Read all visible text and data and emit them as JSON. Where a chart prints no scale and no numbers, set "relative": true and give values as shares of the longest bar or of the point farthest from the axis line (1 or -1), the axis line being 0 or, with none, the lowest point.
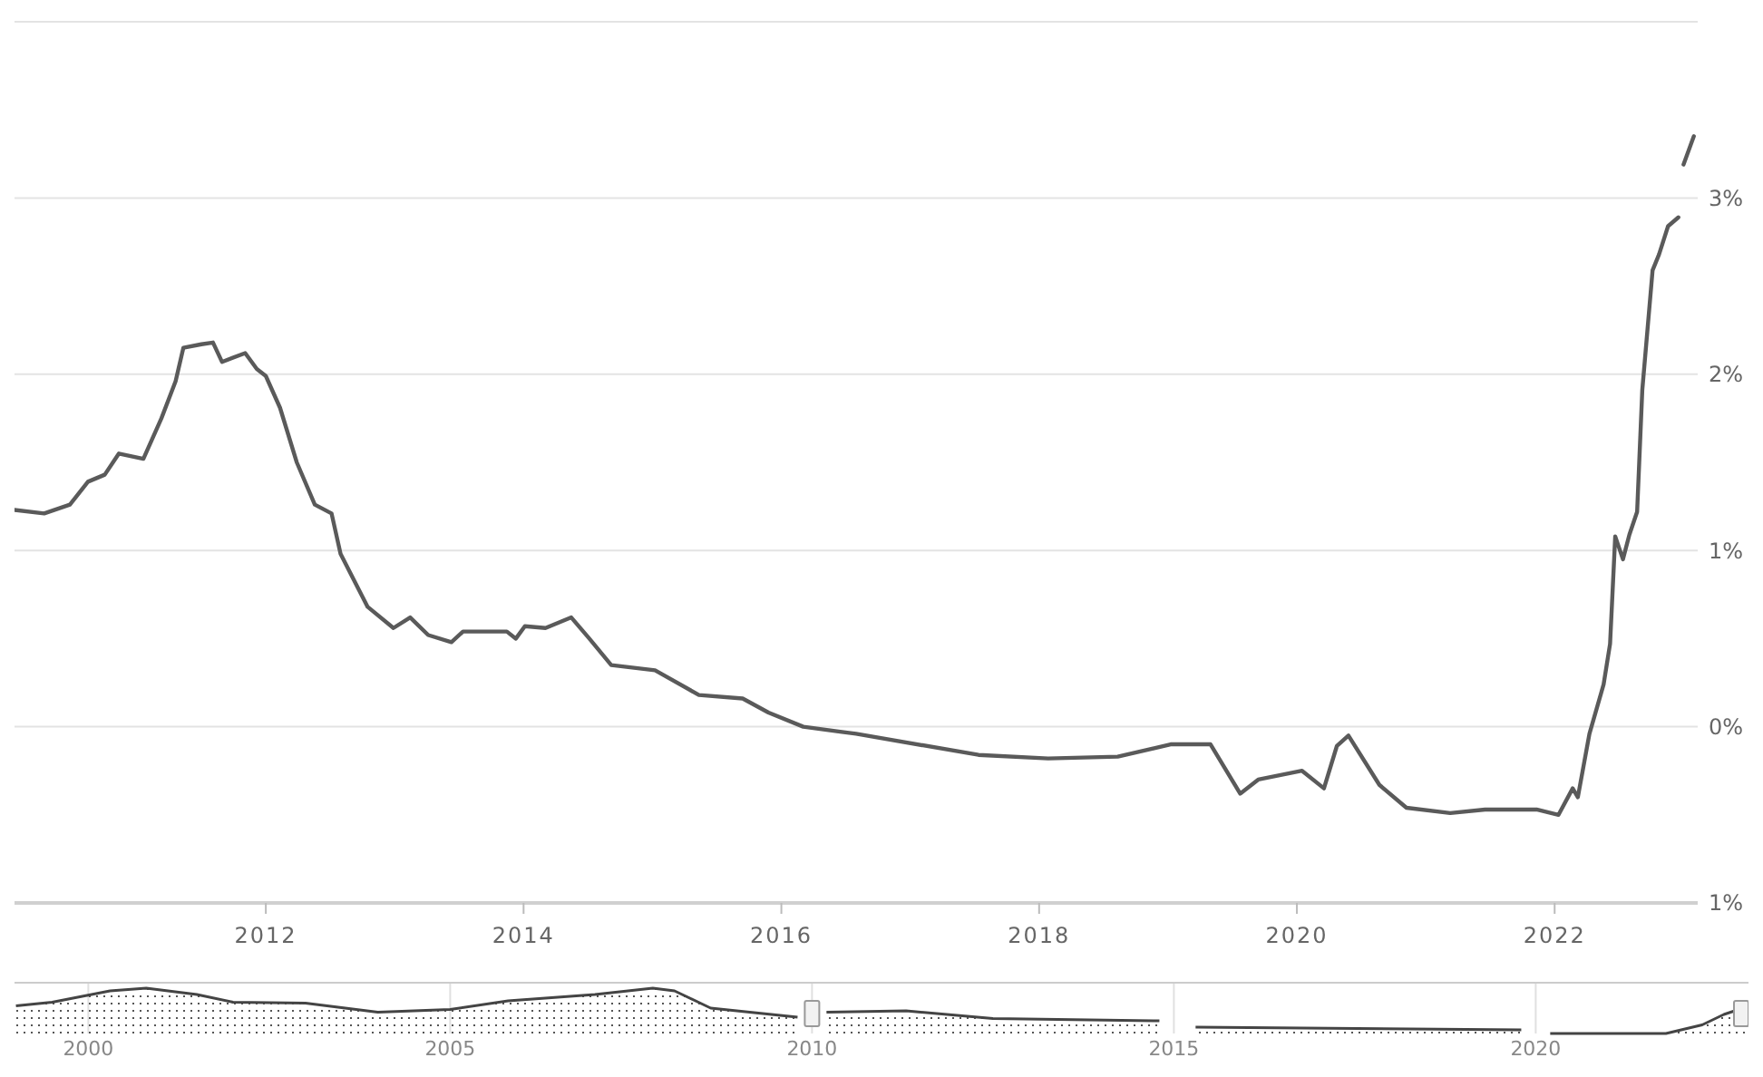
{
  "chart_data": [
    {
      "type": "line",
      "xlim": [
        2010.05,
        2023.11
      ],
      "ylim": [
        -1,
        4
      ],
      "xticks": [
        2012,
        2014,
        2016,
        2018,
        2020,
        2022
      ],
      "yticks": [
        {
          "value": -1,
          "label": "1%"
        },
        {
          "value": 0,
          "label": "0%"
        },
        {
          "value": 1,
          "label": "1%"
        },
        {
          "value": 2,
          "label": "2%"
        },
        {
          "value": 3,
          "label": "3%"
        },
        {
          "value": 4,
          "label": null
        }
      ],
      "grid": "y",
      "marker": "none",
      "line_style": "solid",
      "series": [
        {
          "color": "#5a5a5a",
          "x": [
            2010.05,
            2010.28,
            2010.48,
            2010.62,
            2010.75,
            2010.86,
            2011.05,
            2011.19,
            2011.3,
            2011.36,
            2011.5,
            2011.59,
            2011.66,
            2011.84,
            2011.93,
            2012.0,
            2012.11,
            2012.24,
            2012.38,
            2012.51,
            2012.58,
            2012.79,
            2012.99,
            2013.12,
            2013.26,
            2013.44,
            2013.53,
            2013.87,
            2013.94,
            2014.01,
            2014.17,
            2014.37,
            2014.51,
            2014.68,
            2015.02,
            2015.36,
            2015.7,
            2015.9,
            2016.17,
            2016.47,
            2016.58,
            2017.53,
            2018.07,
            2018.61,
            2019.02,
            2019.33,
            2019.56,
            2019.7,
            2020.04,
            2020.21,
            2020.31,
            2020.4,
            2020.64,
            2020.85,
            2021.19,
            2021.46,
            2021.86,
            2022.03,
            2022.14,
            2022.18,
            2022.27,
            2022.38,
            2022.43,
            2022.47,
            2022.53,
            2022.58,
            2022.64,
            2022.68,
            2022.76,
            2022.81,
            2022.88,
            2022.96,
            2022.98,
            2023.0,
            2023.08
          ],
          "values": [
            1.23,
            1.21,
            1.26,
            1.39,
            1.43,
            1.55,
            1.52,
            1.75,
            1.96,
            2.15,
            2.17,
            2.18,
            2.07,
            2.12,
            2.03,
            1.99,
            1.81,
            1.5,
            1.26,
            1.21,
            0.98,
            0.68,
            0.56,
            0.62,
            0.52,
            0.48,
            0.54,
            0.54,
            0.5,
            0.57,
            0.56,
            0.62,
            0.5,
            0.35,
            0.32,
            0.18,
            0.16,
            0.08,
            0.0,
            -0.03,
            -0.04,
            -0.16,
            -0.18,
            -0.17,
            -0.1,
            -0.1,
            -0.38,
            -0.3,
            -0.25,
            -0.35,
            -0.11,
            -0.05,
            -0.33,
            -0.46,
            -0.49,
            -0.47,
            -0.47,
            -0.5,
            -0.35,
            -0.4,
            -0.04,
            0.24,
            0.47,
            1.08,
            0.95,
            1.09,
            1.22,
            1.91,
            2.59,
            2.68,
            2.84,
            2.89,
            null,
            3.19,
            3.35
          ]
        }
      ]
    },
    {
      "type": "area",
      "relative": true,
      "xlim": [
        1998.98,
        2022.94
      ],
      "xticks": [
        2000,
        2005,
        2010,
        2015,
        2020
      ],
      "tick_labels": "x",
      "grid": "x",
      "series": [
        {
          "color": "#444444",
          "x": [
            1999.0,
            1999.5,
            2000.3,
            2000.8,
            2001.5,
            2002.0,
            2003.0,
            2004.0,
            2005.0,
            2005.8,
            2007.0,
            2007.8,
            2008.1,
            2008.6,
            2009.8,
            2010.0,
            2010.2,
            2011.3,
            2012.5,
            2014.8,
            2015.1,
            2015.3,
            2019.8,
            2020.0,
            2020.2,
            2021.8,
            2022.3,
            2022.6,
            2022.9
          ],
          "values": [
            0.61,
            0.69,
            0.94,
            1.0,
            0.86,
            0.69,
            0.67,
            0.47,
            0.53,
            0.72,
            0.86,
            1.0,
            0.94,
            0.56,
            0.36,
            null,
            0.47,
            0.5,
            0.33,
            0.28,
            null,
            0.14,
            0.08,
            null,
            0,
            0,
            0.19,
            0.42,
            0.58
          ]
        }
      ]
    }
  ]
}
